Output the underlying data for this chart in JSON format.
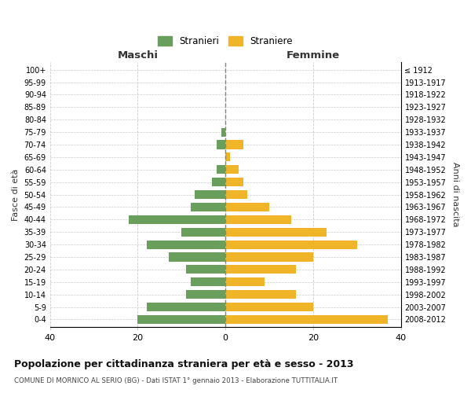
{
  "age_groups": [
    "100+",
    "95-99",
    "90-94",
    "85-89",
    "80-84",
    "75-79",
    "70-74",
    "65-69",
    "60-64",
    "55-59",
    "50-54",
    "45-49",
    "40-44",
    "35-39",
    "30-34",
    "25-29",
    "20-24",
    "15-19",
    "10-14",
    "5-9",
    "0-4"
  ],
  "birth_years": [
    "≤ 1912",
    "1913-1917",
    "1918-1922",
    "1923-1927",
    "1928-1932",
    "1933-1937",
    "1938-1942",
    "1943-1947",
    "1948-1952",
    "1953-1957",
    "1958-1962",
    "1963-1967",
    "1968-1972",
    "1973-1977",
    "1978-1982",
    "1983-1987",
    "1988-1992",
    "1993-1997",
    "1998-2002",
    "2003-2007",
    "2008-2012"
  ],
  "males": [
    0,
    0,
    0,
    0,
    0,
    1,
    2,
    0,
    2,
    3,
    7,
    8,
    22,
    10,
    18,
    13,
    9,
    8,
    9,
    18,
    20
  ],
  "females": [
    0,
    0,
    0,
    0,
    0,
    0,
    4,
    1,
    3,
    4,
    5,
    10,
    15,
    23,
    30,
    20,
    16,
    9,
    16,
    20,
    37
  ],
  "male_color": "#6a9e5c",
  "female_color": "#f0b429",
  "title": "Popolazione per cittadinanza straniera per età e sesso - 2013",
  "subtitle": "COMUNE DI MORNICO AL SERIO (BG) - Dati ISTAT 1° gennaio 2013 - Elaborazione TUTTITALIA.IT",
  "xlabel_left": "Maschi",
  "xlabel_right": "Femmine",
  "ylabel_left": "Fasce di età",
  "ylabel_right": "Anni di nascita",
  "legend_male": "Stranieri",
  "legend_female": "Straniere",
  "xlim": 40,
  "background_color": "#ffffff",
  "grid_color": "#cccccc"
}
